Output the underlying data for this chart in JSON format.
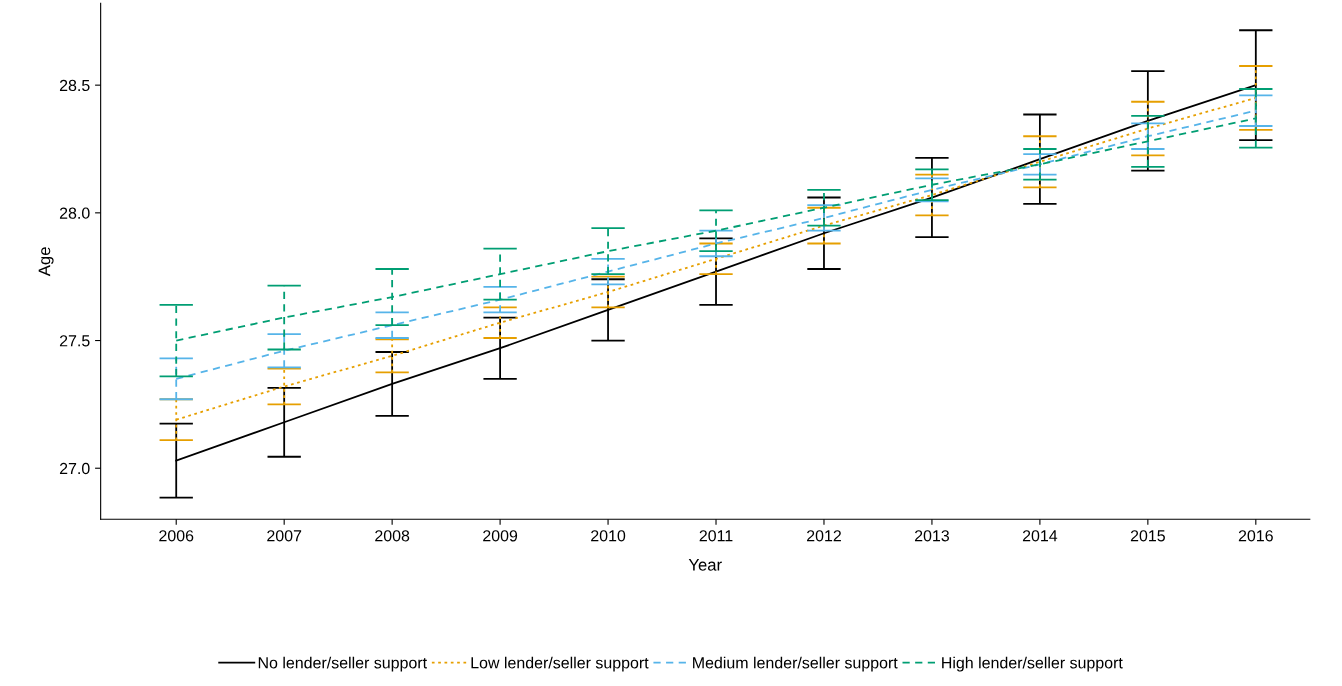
{
  "chart_data": {
    "type": "line",
    "xlabel": "Year",
    "ylabel": "Age",
    "x": [
      2006,
      2007,
      2008,
      2009,
      2010,
      2011,
      2012,
      2013,
      2014,
      2015,
      2016
    ],
    "xlim": [
      2005.3,
      2016.5
    ],
    "xticks": [
      2006,
      2007,
      2008,
      2009,
      2010,
      2011,
      2012,
      2013,
      2014,
      2015,
      2016
    ],
    "ylim": [
      26.8,
      28.82
    ],
    "yticks": [
      {
        "value": 27,
        "label": "27.0"
      },
      27.5,
      {
        "value": 28,
        "label": "28.0"
      },
      28.5
    ],
    "grid": false,
    "legend": "bottom",
    "marker": "none",
    "series": [
      {
        "name": "No lender/seller support",
        "color": "#000000",
        "line_style": "solid",
        "values": [
          27.03,
          27.18,
          27.33,
          27.47,
          27.62,
          27.77,
          27.92,
          28.06,
          28.21,
          28.36,
          28.5
        ],
        "errors": [
          0.145,
          0.135,
          0.125,
          0.12,
          0.12,
          0.13,
          0.14,
          0.155,
          0.175,
          0.195,
          0.215
        ]
      },
      {
        "name": "Low lender/seller support",
        "color": "#e69f00",
        "line_style": "dotted",
        "values": [
          27.19,
          27.32,
          27.44,
          27.57,
          27.69,
          27.82,
          27.95,
          28.07,
          28.2,
          28.33,
          28.45
        ],
        "errors": [
          0.08,
          0.07,
          0.065,
          0.06,
          0.06,
          0.06,
          0.07,
          0.08,
          0.1,
          0.105,
          0.125
        ]
      },
      {
        "name": "Medium lender/seller support",
        "color": "#56b4e9",
        "line_style": "dashed",
        "values": [
          27.35,
          27.46,
          27.56,
          27.66,
          27.77,
          27.88,
          27.98,
          28.09,
          28.19,
          28.3,
          28.4
        ],
        "errors": [
          0.08,
          0.065,
          0.05,
          0.05,
          0.05,
          0.05,
          0.05,
          0.045,
          0.04,
          0.05,
          0.06
        ]
      },
      {
        "name": "High lender/seller support",
        "color": "#009e73",
        "line_style": "dashed",
        "values": [
          27.5,
          27.59,
          27.67,
          27.76,
          27.85,
          27.93,
          28.02,
          28.11,
          28.19,
          28.28,
          28.37
        ],
        "errors": [
          0.14,
          0.125,
          0.11,
          0.1,
          0.09,
          0.08,
          0.07,
          0.06,
          0.06,
          0.1,
          0.115
        ]
      }
    ]
  }
}
